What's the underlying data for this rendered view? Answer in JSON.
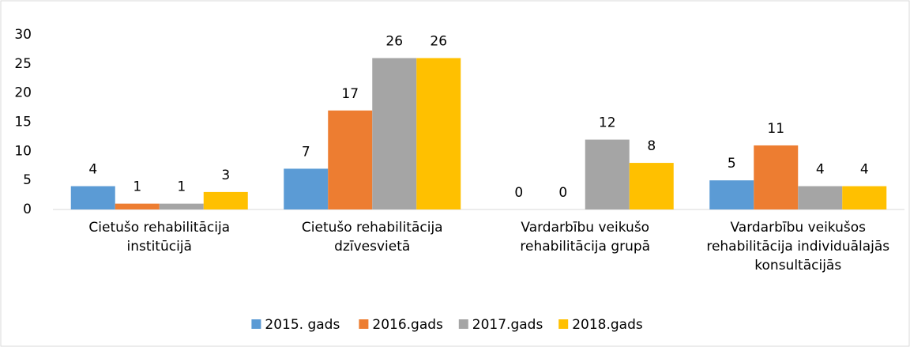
{
  "chart_data": {
    "type": "bar",
    "categories": [
      "Cietušo rehabilitācija institūcijā",
      "Cietušo rehabilitācija dzīvesvietā",
      "Vardarbību veikušo rehabilitācija grupā",
      "Vardarbību veikušos rehabilitācija individuālajās konsultācijās"
    ],
    "series": [
      {
        "name": "2015. gads",
        "color": "#5b9bd5",
        "values": [
          4,
          7,
          0,
          5
        ]
      },
      {
        "name": "2016.gads",
        "color": "#ed7d31",
        "values": [
          1,
          17,
          0,
          11
        ]
      },
      {
        "name": "2017.gads",
        "color": "#a5a5a5",
        "values": [
          1,
          26,
          12,
          4
        ]
      },
      {
        "name": "2018.gads",
        "color": "#ffc000",
        "values": [
          3,
          26,
          8,
          4
        ]
      }
    ],
    "ylim": [
      0,
      30
    ],
    "yticks": [
      0,
      5,
      10,
      15,
      20,
      25,
      30
    ],
    "grid": false,
    "legend": "bottom"
  }
}
